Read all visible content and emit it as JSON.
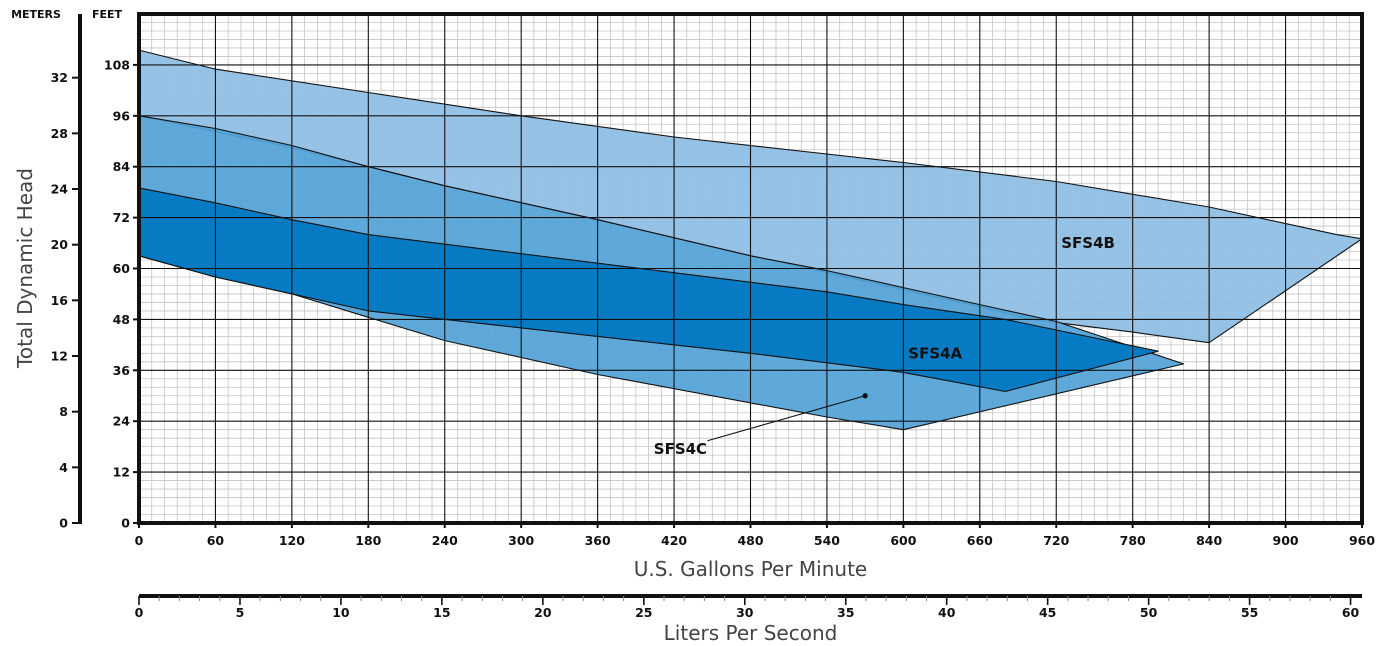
{
  "chart_data": {
    "type": "area",
    "title": "",
    "xlabel": "U.S. Gallons Per Minute",
    "ylabel": "Total Dynamic Head",
    "secondary_xlabel": "Liters Per Second",
    "left_unit_label": "METERS",
    "right_unit_label": "FEET",
    "x_ticks": [
      0,
      60,
      120,
      180,
      240,
      300,
      360,
      420,
      480,
      540,
      600,
      660,
      720,
      780,
      840,
      900,
      960
    ],
    "y_ticks_feet": [
      0,
      12,
      24,
      36,
      48,
      60,
      72,
      84,
      96,
      108
    ],
    "y_ticks_meters": [
      0,
      4,
      8,
      12,
      16,
      20,
      24,
      28,
      32
    ],
    "lps_ticks": [
      0,
      5,
      10,
      15,
      20,
      25,
      30,
      35,
      40,
      45,
      50,
      55,
      60
    ],
    "xlim": [
      0,
      960
    ],
    "ylim_feet": [
      0,
      120
    ],
    "grid": true,
    "series": [
      {
        "name": "SFS4B",
        "color": "#8dbde3",
        "points": [
          [
            0,
            111.5
          ],
          [
            60,
            107
          ],
          [
            180,
            101.5
          ],
          [
            300,
            96
          ],
          [
            420,
            91
          ],
          [
            540,
            87
          ],
          [
            600,
            85
          ],
          [
            720,
            80.5
          ],
          [
            840,
            74.5
          ],
          [
            940,
            68
          ],
          [
            960,
            67
          ],
          [
            840,
            42.5
          ],
          [
            780,
            45
          ],
          [
            700,
            48
          ],
          [
            660,
            51
          ],
          [
            600,
            55
          ],
          [
            480,
            63
          ],
          [
            360,
            71.5
          ],
          [
            240,
            79.5
          ],
          [
            120,
            88.5
          ],
          [
            0,
            96
          ]
        ]
      },
      {
        "name": "SFS4C",
        "color": "#52a2d7",
        "points": [
          [
            0,
            96
          ],
          [
            60,
            93
          ],
          [
            120,
            89
          ],
          [
            180,
            84
          ],
          [
            240,
            79.5
          ],
          [
            360,
            71.5
          ],
          [
            480,
            63
          ],
          [
            540,
            59.5
          ],
          [
            600,
            55.5
          ],
          [
            660,
            51.5
          ],
          [
            720,
            47.5
          ],
          [
            820,
            37.5
          ],
          [
            600,
            22
          ],
          [
            540,
            25
          ],
          [
            360,
            35
          ],
          [
            240,
            43
          ],
          [
            180,
            48.5
          ],
          [
            120,
            54
          ],
          [
            60,
            58
          ],
          [
            0,
            63
          ]
        ]
      },
      {
        "name": "SFS4A",
        "color": "#0077c1",
        "points": [
          [
            0,
            79
          ],
          [
            60,
            75.5
          ],
          [
            120,
            71.5
          ],
          [
            180,
            68
          ],
          [
            300,
            63.5
          ],
          [
            420,
            59
          ],
          [
            540,
            54.5
          ],
          [
            600,
            51.5
          ],
          [
            680,
            48
          ],
          [
            800,
            40.5
          ],
          [
            680,
            31
          ],
          [
            600,
            35.5
          ],
          [
            480,
            40
          ],
          [
            360,
            44
          ],
          [
            240,
            48
          ],
          [
            180,
            50
          ],
          [
            120,
            54
          ],
          [
            60,
            58
          ],
          [
            0,
            63
          ]
        ]
      }
    ],
    "labels": [
      {
        "text": "SFS4B",
        "x": 745,
        "y": 66
      },
      {
        "text": "SFS4A",
        "x": 625,
        "y": 40
      },
      {
        "text": "SFS4C",
        "x": 425,
        "y": 17.5,
        "pointer_to": [
          570,
          30
        ]
      }
    ]
  }
}
